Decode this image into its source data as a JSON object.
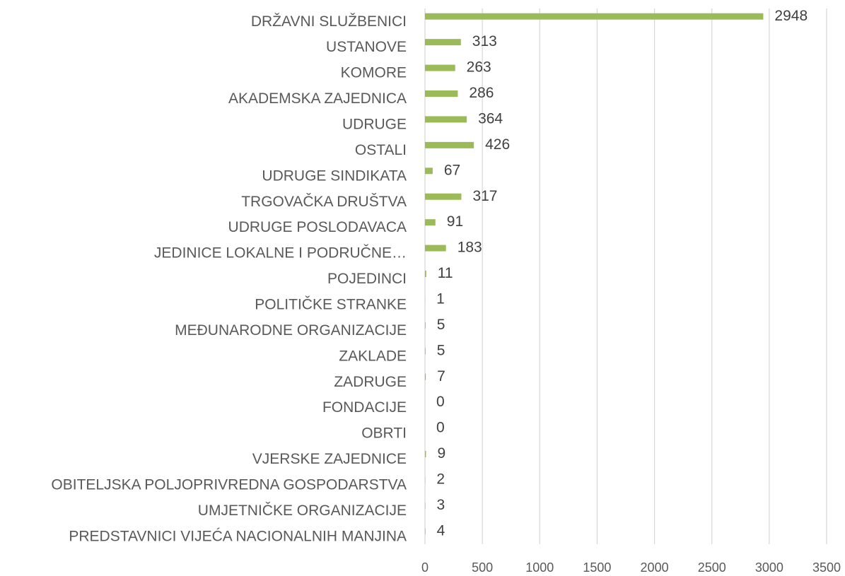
{
  "chart_data": {
    "type": "hbar",
    "categories": [
      "DRŽAVNI SLUŽBENICI",
      "USTANOVE",
      "KOMORE",
      "AKADEMSKA ZAJEDNICA",
      "UDRUGE",
      "OSTALI",
      "UDRUGE SINDIKATA",
      "TRGOVAČKA DRUŠTVA",
      "UDRUGE POSLODAVACA",
      "JEDINICE LOKALNE I PODRUČNE…",
      "POJEDINCI",
      "POLITIČKE STRANKE",
      "MEĐUNARODNE ORGANIZACIJE",
      "ZAKLADE",
      "ZADRUGE",
      "FONDACIJE",
      "OBRTI",
      "VJERSKE ZAJEDNICE",
      "OBITELJSKA POLJOPRIVREDNA GOSPODARSTVA",
      "UMJETNIČKE ORGANIZACIJE",
      "PREDSTAVNICI VIJEĆA NACIONALNIH MANJINA"
    ],
    "values": [
      2948,
      313,
      263,
      286,
      364,
      426,
      67,
      317,
      91,
      183,
      11,
      1,
      5,
      5,
      7,
      0,
      0,
      9,
      2,
      3,
      4
    ],
    "color": "#9bbb59",
    "xlim": [
      0,
      3500
    ],
    "xticks": [
      0,
      500,
      1000,
      1500,
      2000,
      2500,
      3000,
      3500
    ],
    "grid": true
  }
}
